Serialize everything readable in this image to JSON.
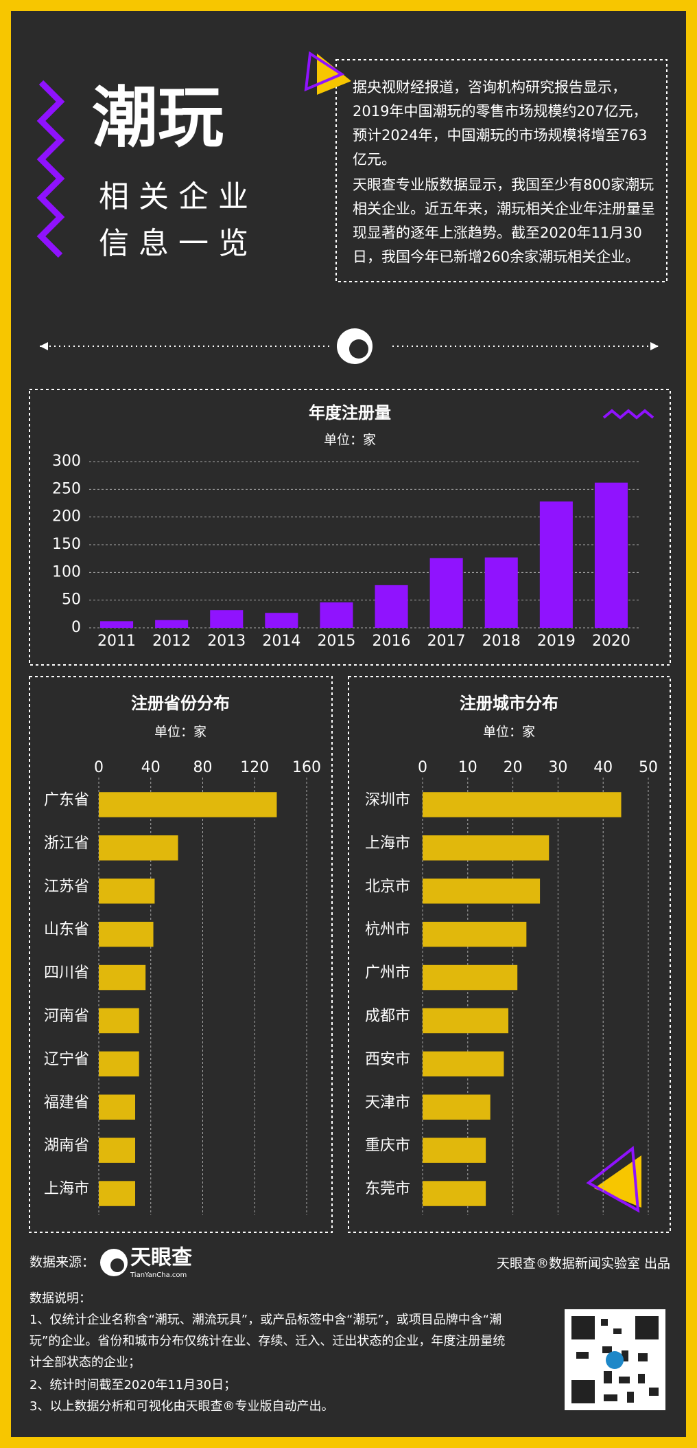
{
  "header": {
    "title": "潮玩",
    "subtitle": [
      "相关企业",
      "信息一览"
    ]
  },
  "intro": [
    "据央视财经报道，咨询机构研究报告显示，2019年中国潮玩的零售市场规模约207亿元，预计2024年，中国潮玩的市场规模将增至763亿元。",
    "天眼查专业版数据显示，我国至少有800家潮玩相关企业。近五年来，潮玩相关企业年注册量呈现显著的逐年上涨趋势。截至2020年11月30日，我国今年已新增260余家潮玩相关企业。"
  ],
  "chart_data": [
    {
      "type": "bar",
      "title": "年度注册量",
      "unit": "单位：家",
      "categories": [
        "2011",
        "2012",
        "2013",
        "2014",
        "2015",
        "2016",
        "2017",
        "2018",
        "2019",
        "2020"
      ],
      "values": [
        12,
        14,
        32,
        27,
        46,
        77,
        126,
        127,
        228,
        262
      ],
      "color": "#9013fe",
      "ylim": [
        0,
        300
      ],
      "yticks": [
        0,
        50,
        100,
        150,
        200,
        250,
        300
      ],
      "grid": true
    },
    {
      "type": "barh",
      "title": "注册省份分布",
      "unit": "单位：家",
      "categories": [
        "广东省",
        "浙江省",
        "江苏省",
        "山东省",
        "四川省",
        "河南省",
        "辽宁省",
        "福建省",
        "湖南省",
        "上海市"
      ],
      "values": [
        137,
        61,
        43,
        42,
        36,
        31,
        31,
        28,
        28,
        28
      ],
      "color": "#e1b80c",
      "xlim": [
        0,
        160
      ],
      "xticks": [
        0,
        40,
        80,
        120,
        160
      ],
      "grid": true
    },
    {
      "type": "barh",
      "title": "注册城市分布",
      "unit": "单位：家",
      "categories": [
        "深圳市",
        "上海市",
        "北京市",
        "杭州市",
        "广州市",
        "成都市",
        "西安市",
        "天津市",
        "重庆市",
        "东莞市"
      ],
      "values": [
        44,
        28,
        26,
        23,
        21,
        19,
        18,
        15,
        14,
        14
      ],
      "color": "#e1b80c",
      "xlim": [
        0,
        50
      ],
      "xticks": [
        0,
        10,
        20,
        30,
        40,
        50
      ],
      "grid": true
    }
  ],
  "footer": {
    "source_label": "数据来源：",
    "logo_name": "天眼查",
    "logo_url": "TianYanCha.com",
    "credit": "天眼查®数据新闻实验室 出品",
    "notes_title": "数据说明：",
    "notes": [
      "1、仅统计企业名称含“潮玩、潮流玩具”，或产品标签中含“潮玩”，或项目品牌中含“潮玩”的企业。省份和城市分布仅统计在业、存续、迁入、迁出状态的企业，年度注册量统计全部状态的企业；",
      "2、统计时间截至2020年11月30日；",
      "3、以上数据分析和可视化由天眼查®专业版自动产出。"
    ]
  }
}
